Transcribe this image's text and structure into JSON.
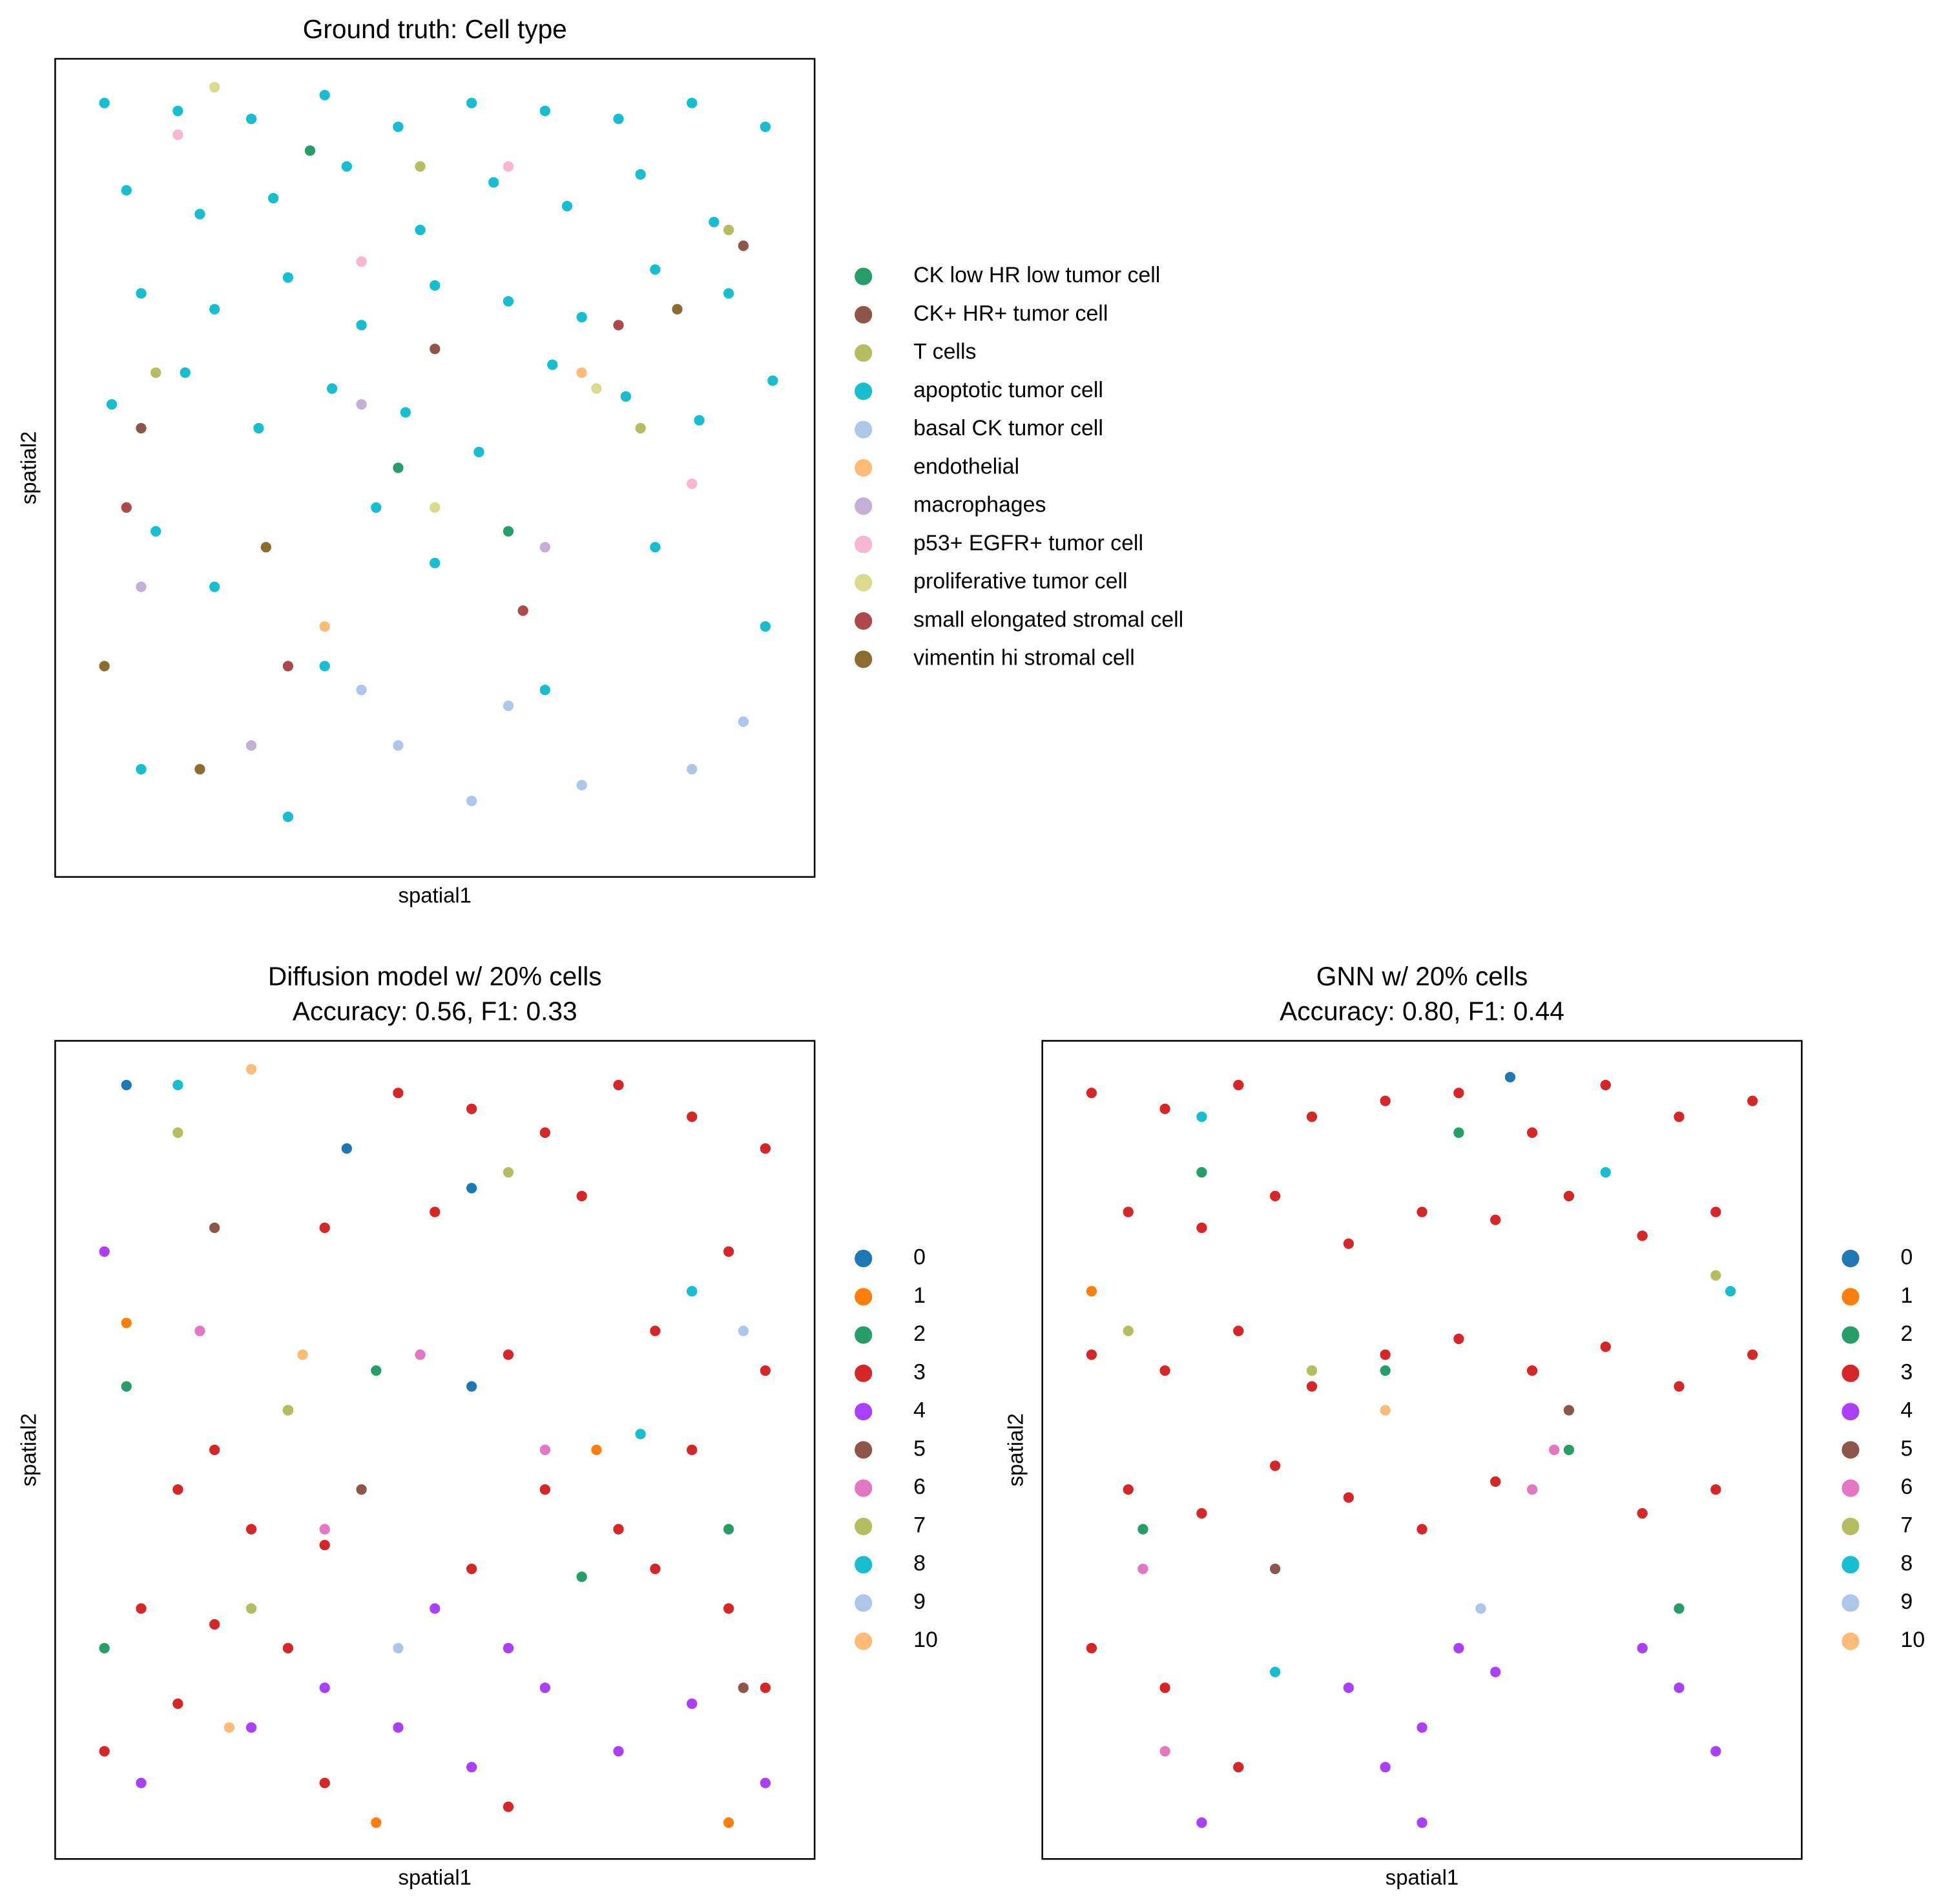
{
  "chart_data": [
    {
      "type": "scatter",
      "title": "Ground truth: Cell type",
      "xlabel": "spatial1",
      "ylabel": "spatial2",
      "xlim": [
        0,
        1
      ],
      "ylim": [
        0,
        1
      ],
      "legend": "right",
      "series": [
        {
          "name": "CK low HR low tumor cell",
          "color": "#279e68",
          "x": [
            0.45,
            0.6,
            0.33
          ],
          "y": [
            0.5,
            0.42,
            0.9
          ]
        },
        {
          "name": "CK+ HR+ tumor cell",
          "color": "#8c564b",
          "x": [
            0.1,
            0.5,
            0.92
          ],
          "y": [
            0.55,
            0.65,
            0.78
          ]
        },
        {
          "name": "T cells",
          "color": "#b5bd61",
          "x": [
            0.48,
            0.12,
            0.9,
            0.78
          ],
          "y": [
            0.88,
            0.62,
            0.8,
            0.55
          ]
        },
        {
          "name": "apoptotic tumor cell",
          "color": "#17becf",
          "x": [
            0.05,
            0.15,
            0.25,
            0.35,
            0.45,
            0.55,
            0.65,
            0.75,
            0.85,
            0.95,
            0.08,
            0.18,
            0.28,
            0.38,
            0.48,
            0.58,
            0.68,
            0.78,
            0.88,
            0.1,
            0.2,
            0.3,
            0.4,
            0.5,
            0.6,
            0.7,
            0.8,
            0.9,
            0.06,
            0.16,
            0.26,
            0.36,
            0.46,
            0.56,
            0.66,
            0.76,
            0.86,
            0.96,
            0.12,
            0.42,
            0.2,
            0.5,
            0.8,
            0.35,
            0.65,
            0.95,
            0.1,
            0.3
          ],
          "y": [
            0.96,
            0.95,
            0.94,
            0.97,
            0.93,
            0.96,
            0.95,
            0.94,
            0.96,
            0.93,
            0.85,
            0.82,
            0.84,
            0.88,
            0.8,
            0.86,
            0.83,
            0.87,
            0.81,
            0.72,
            0.7,
            0.74,
            0.68,
            0.73,
            0.71,
            0.69,
            0.75,
            0.72,
            0.58,
            0.62,
            0.55,
            0.6,
            0.57,
            0.52,
            0.63,
            0.59,
            0.56,
            0.61,
            0.42,
            0.45,
            0.35,
            0.38,
            0.4,
            0.25,
            0.22,
            0.3,
            0.12,
            0.06
          ]
        },
        {
          "name": "basal CK tumor cell",
          "color": "#aec7e8",
          "x": [
            0.45,
            0.6,
            0.7,
            0.85,
            0.4,
            0.55,
            0.92
          ],
          "y": [
            0.15,
            0.2,
            0.1,
            0.12,
            0.22,
            0.08,
            0.18
          ]
        },
        {
          "name": "endothelial",
          "color": "#ffbb78",
          "x": [
            0.7,
            0.35
          ],
          "y": [
            0.62,
            0.3
          ]
        },
        {
          "name": "macrophages",
          "color": "#c5b0d5",
          "x": [
            0.1,
            0.65,
            0.25,
            0.4
          ],
          "y": [
            0.35,
            0.4,
            0.15,
            0.58
          ]
        },
        {
          "name": "p53+ EGFR+ tumor cell",
          "color": "#f7b6d2",
          "x": [
            0.15,
            0.4,
            0.85,
            0.6
          ],
          "y": [
            0.92,
            0.76,
            0.48,
            0.88
          ]
        },
        {
          "name": "proliferative tumor cell",
          "color": "#dbdb8d",
          "x": [
            0.2,
            0.72,
            0.5
          ],
          "y": [
            0.98,
            0.6,
            0.45
          ]
        },
        {
          "name": "small elongated stromal cell",
          "color": "#ad494a",
          "x": [
            0.08,
            0.3,
            0.75,
            0.62
          ],
          "y": [
            0.45,
            0.25,
            0.68,
            0.32
          ]
        },
        {
          "name": "vimentin hi stromal cell",
          "color": "#8c6d31",
          "x": [
            0.05,
            0.27,
            0.18,
            0.83
          ],
          "y": [
            0.25,
            0.4,
            0.12,
            0.7
          ]
        }
      ]
    },
    {
      "type": "scatter",
      "title": "Diffusion model w/ 20% cells",
      "subtitle": "Accuracy: 0.56, F1: 0.33",
      "xlabel": "spatial1",
      "ylabel": "spatial2",
      "xlim": [
        0,
        1
      ],
      "ylim": [
        0,
        1
      ],
      "legend": "right",
      "series": [
        {
          "name": "0",
          "color": "#1f77b4",
          "x": [
            0.08,
            0.38,
            0.55,
            0.55
          ],
          "y": [
            0.96,
            0.88,
            0.83,
            0.58
          ]
        },
        {
          "name": "1",
          "color": "#ff7f0e",
          "x": [
            0.08,
            0.42,
            0.9,
            0.72
          ],
          "y": [
            0.66,
            0.03,
            0.03,
            0.5
          ]
        },
        {
          "name": "2",
          "color": "#279e68",
          "x": [
            0.08,
            0.42,
            0.7,
            0.9,
            0.05
          ],
          "y": [
            0.58,
            0.6,
            0.34,
            0.4,
            0.25
          ]
        },
        {
          "name": "3",
          "color": "#d62728",
          "x": [
            0.45,
            0.55,
            0.65,
            0.75,
            0.85,
            0.95,
            0.35,
            0.5,
            0.7,
            0.9,
            0.2,
            0.3,
            0.6,
            0.8,
            0.95,
            0.15,
            0.25,
            0.35,
            0.65,
            0.85,
            0.1,
            0.2,
            0.3,
            0.55,
            0.75,
            0.9,
            0.05,
            0.15,
            0.35,
            0.6,
            0.8,
            0.95
          ],
          "y": [
            0.95,
            0.93,
            0.9,
            0.96,
            0.92,
            0.88,
            0.78,
            0.8,
            0.82,
            0.75,
            0.5,
            0.55,
            0.62,
            0.65,
            0.6,
            0.45,
            0.4,
            0.38,
            0.45,
            0.5,
            0.3,
            0.28,
            0.25,
            0.35,
            0.4,
            0.3,
            0.12,
            0.18,
            0.08,
            0.05,
            0.35,
            0.2
          ]
        },
        {
          "name": "4",
          "color": "#aa40fc",
          "x": [
            0.1,
            0.25,
            0.35,
            0.45,
            0.55,
            0.65,
            0.75,
            0.85,
            0.95,
            0.5,
            0.6,
            0.05
          ],
          "y": [
            0.08,
            0.15,
            0.2,
            0.15,
            0.1,
            0.2,
            0.12,
            0.18,
            0.08,
            0.3,
            0.25,
            0.75
          ]
        },
        {
          "name": "5",
          "color": "#8c564b",
          "x": [
            0.2,
            0.4,
            0.92
          ],
          "y": [
            0.78,
            0.45,
            0.2
          ]
        },
        {
          "name": "6",
          "color": "#e377c2",
          "x": [
            0.18,
            0.48,
            0.65,
            0.35
          ],
          "y": [
            0.65,
            0.62,
            0.5,
            0.4
          ]
        },
        {
          "name": "7",
          "color": "#b5bd61",
          "x": [
            0.15,
            0.3,
            0.6,
            0.25,
            0.85
          ],
          "y": [
            0.9,
            0.55,
            0.85,
            0.3,
            0.7
          ]
        },
        {
          "name": "8",
          "color": "#17becf",
          "x": [
            0.15,
            0.85,
            0.78
          ],
          "y": [
            0.96,
            0.7,
            0.52
          ]
        },
        {
          "name": "9",
          "color": "#aec7e8",
          "x": [
            0.45,
            0.92
          ],
          "y": [
            0.25,
            0.65
          ]
        },
        {
          "name": "10",
          "color": "#ffbb78",
          "x": [
            0.25,
            0.32,
            0.22
          ],
          "y": [
            0.98,
            0.62,
            0.15
          ]
        }
      ]
    },
    {
      "type": "scatter",
      "title": "GNN w/ 20% cells",
      "subtitle": "Accuracy: 0.80, F1: 0.44",
      "xlabel": "spatial1",
      "ylabel": "spatial2",
      "xlim": [
        0,
        1
      ],
      "ylim": [
        0,
        1
      ],
      "legend": "right",
      "series": [
        {
          "name": "0",
          "color": "#1f77b4",
          "x": [
            0.62
          ],
          "y": [
            0.97
          ]
        },
        {
          "name": "1",
          "color": "#ff7f0e",
          "x": [
            0.05
          ],
          "y": [
            0.7
          ]
        },
        {
          "name": "2",
          "color": "#279e68",
          "x": [
            0.2,
            0.45,
            0.55,
            0.7,
            0.12,
            0.85
          ],
          "y": [
            0.85,
            0.6,
            0.9,
            0.5,
            0.4,
            0.3
          ]
        },
        {
          "name": "3",
          "color": "#d62728",
          "x": [
            0.05,
            0.15,
            0.25,
            0.35,
            0.45,
            0.55,
            0.65,
            0.75,
            0.85,
            0.95,
            0.1,
            0.2,
            0.3,
            0.4,
            0.5,
            0.6,
            0.7,
            0.8,
            0.9,
            0.05,
            0.15,
            0.25,
            0.35,
            0.45,
            0.55,
            0.65,
            0.75,
            0.85,
            0.95,
            0.1,
            0.2,
            0.3,
            0.4,
            0.5,
            0.6,
            0.8,
            0.9,
            0.05,
            0.15,
            0.25
          ],
          "y": [
            0.95,
            0.93,
            0.96,
            0.92,
            0.94,
            0.95,
            0.9,
            0.96,
            0.92,
            0.94,
            0.8,
            0.78,
            0.82,
            0.76,
            0.8,
            0.79,
            0.82,
            0.77,
            0.8,
            0.62,
            0.6,
            0.65,
            0.58,
            0.62,
            0.64,
            0.6,
            0.63,
            0.58,
            0.62,
            0.45,
            0.42,
            0.48,
            0.44,
            0.4,
            0.46,
            0.42,
            0.45,
            0.25,
            0.2,
            0.1
          ]
        },
        {
          "name": "4",
          "color": "#aa40fc",
          "x": [
            0.4,
            0.5,
            0.6,
            0.45,
            0.55,
            0.85,
            0.9,
            0.8,
            0.2,
            0.5
          ],
          "y": [
            0.2,
            0.15,
            0.22,
            0.1,
            0.25,
            0.2,
            0.12,
            0.25,
            0.03,
            0.03
          ]
        },
        {
          "name": "5",
          "color": "#8c564b",
          "x": [
            0.3,
            0.7
          ],
          "y": [
            0.35,
            0.55
          ]
        },
        {
          "name": "6",
          "color": "#e377c2",
          "x": [
            0.12,
            0.68,
            0.65,
            0.15
          ],
          "y": [
            0.35,
            0.5,
            0.45,
            0.12
          ]
        },
        {
          "name": "7",
          "color": "#b5bd61",
          "x": [
            0.1,
            0.35,
            0.9
          ],
          "y": [
            0.65,
            0.6,
            0.72
          ]
        },
        {
          "name": "8",
          "color": "#17becf",
          "x": [
            0.2,
            0.75,
            0.92,
            0.3
          ],
          "y": [
            0.92,
            0.85,
            0.7,
            0.22
          ]
        },
        {
          "name": "9",
          "color": "#aec7e8",
          "x": [
            0.58
          ],
          "y": [
            0.3
          ]
        },
        {
          "name": "10",
          "color": "#ffbb78",
          "x": [
            0.45
          ],
          "y": [
            0.55
          ]
        }
      ]
    }
  ]
}
